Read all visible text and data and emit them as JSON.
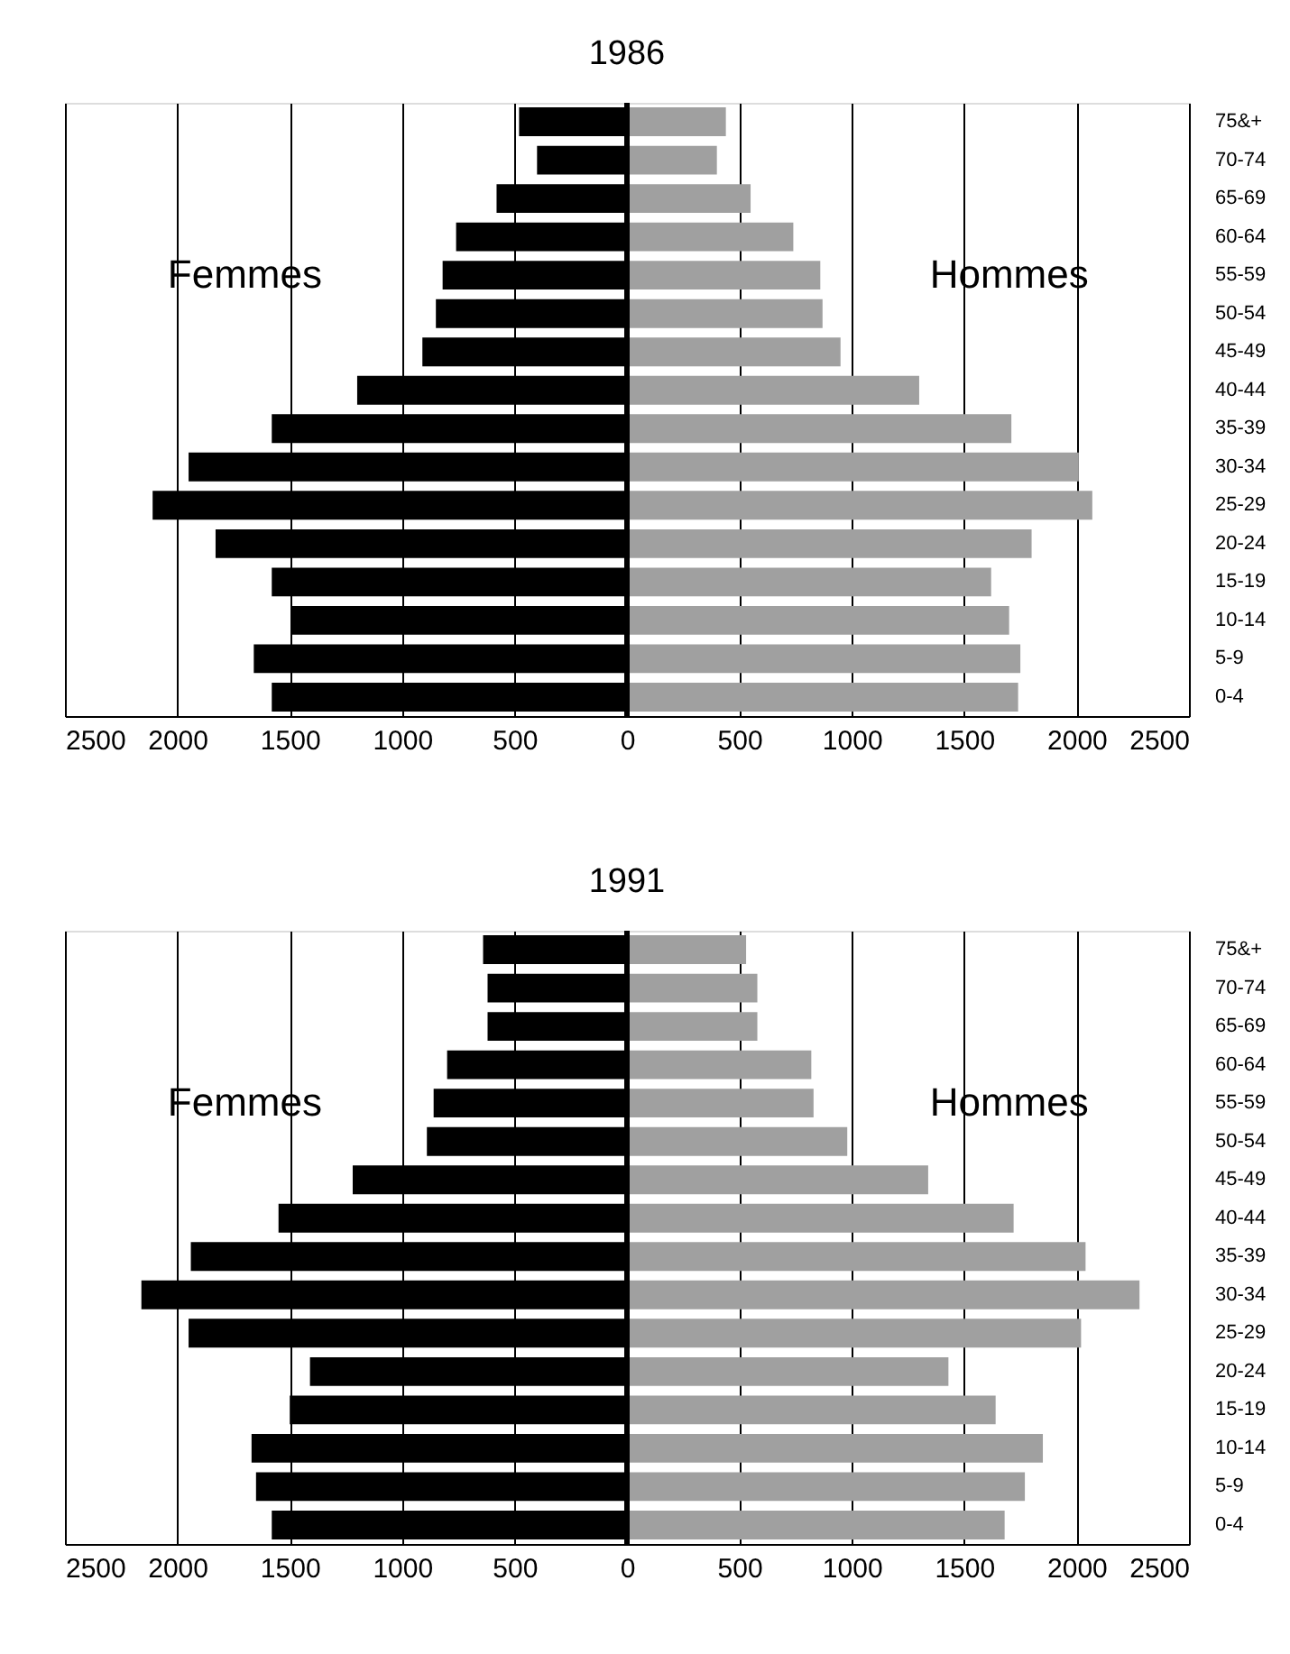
{
  "chart_data": [
    {
      "type": "bar",
      "orientation": "horizontal",
      "title": "1986",
      "categories": [
        "75&+",
        "70-74",
        "65-69",
        "60-64",
        "55-59",
        "50-54",
        "45-49",
        "40-44",
        "35-39",
        "30-34",
        "25-29",
        "20-24",
        "15-19",
        "10-14",
        "5-9",
        "0-4"
      ],
      "series": [
        {
          "name": "Femmes",
          "color": "#000000",
          "values": [
            -480,
            -400,
            -580,
            -760,
            -820,
            -850,
            -910,
            -1200,
            -1580,
            -1950,
            -2110,
            -1830,
            -1580,
            -1490,
            -1660,
            -1580
          ]
        },
        {
          "name": "Hommes",
          "color": "#a0a0a0",
          "values": [
            440,
            400,
            550,
            740,
            860,
            870,
            950,
            1300,
            1710,
            2010,
            2070,
            1800,
            1620,
            1700,
            1750,
            1740
          ]
        }
      ],
      "stacked": true,
      "xlim": [
        -2500,
        2500
      ],
      "xticks": [
        {
          "value": -2500,
          "label": "2500"
        },
        {
          "value": -2000,
          "label": "2000"
        },
        {
          "value": -1500,
          "label": "1500"
        },
        {
          "value": -1000,
          "label": "1000"
        },
        {
          "value": -500,
          "label": "500"
        },
        0,
        500,
        1000,
        1500,
        2000,
        2500
      ],
      "ref_lines": [
        {
          "axis": "x",
          "value": 0,
          "color": "#000000"
        }
      ],
      "grid": "x"
    },
    {
      "type": "bar",
      "orientation": "horizontal",
      "title": "1991",
      "categories": [
        "75&+",
        "70-74",
        "65-69",
        "60-64",
        "55-59",
        "50-54",
        "45-49",
        "40-44",
        "35-39",
        "30-34",
        "25-29",
        "20-24",
        "15-19",
        "10-14",
        "5-9",
        "0-4"
      ],
      "series": [
        {
          "name": "Femmes",
          "color": "#000000",
          "values": [
            -640,
            -620,
            -620,
            -800,
            -860,
            -890,
            -1220,
            -1550,
            -1940,
            -2160,
            -1950,
            -1410,
            -1500,
            -1670,
            -1650,
            -1580
          ]
        },
        {
          "name": "Hommes",
          "color": "#a0a0a0",
          "values": [
            530,
            580,
            580,
            820,
            830,
            980,
            1340,
            1720,
            2040,
            2280,
            2020,
            1430,
            1640,
            1850,
            1770,
            1680
          ]
        }
      ],
      "stacked": true,
      "xlim": [
        -2500,
        2500
      ],
      "xticks": [
        {
          "value": -2500,
          "label": "2500"
        },
        {
          "value": -2000,
          "label": "2000"
        },
        {
          "value": -1500,
          "label": "1500"
        },
        {
          "value": -1000,
          "label": "1000"
        },
        {
          "value": -500,
          "label": "500"
        },
        0,
        500,
        1000,
        1500,
        2000,
        2500
      ],
      "ref_lines": [
        {
          "axis": "x",
          "value": 0,
          "color": "#000000"
        }
      ],
      "grid": "x"
    }
  ]
}
